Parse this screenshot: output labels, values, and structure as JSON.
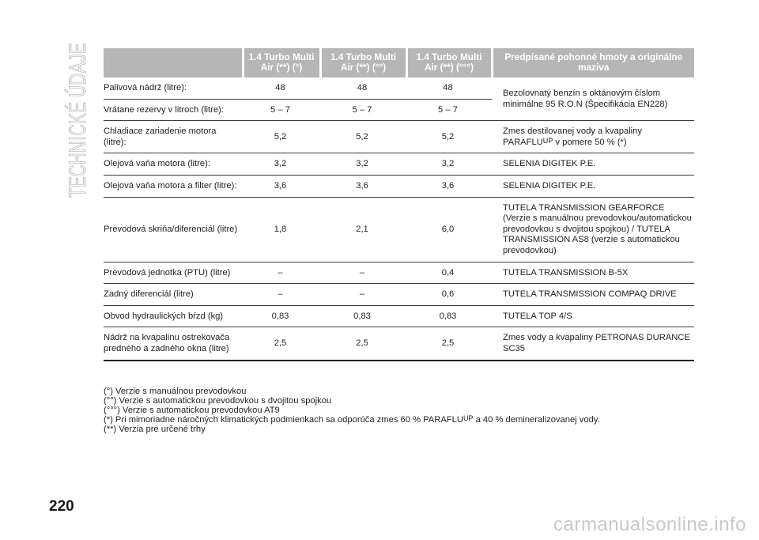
{
  "section_title": "TECHNICKÉ ÚDAJE",
  "page_number": "220",
  "watermark": "carmanualsonline.info",
  "table": {
    "headers": {
      "col1": "1.4 Turbo Multi Air (**) (°)",
      "col2": "1.4 Turbo Multi Air (**) (°°)",
      "col3": "1.4 Turbo Multi Air (**) (°°°)",
      "col4": "Predpísané pohonné hmoty a originálne maziva"
    },
    "rows": [
      {
        "label": "Palivová nádrž (litre):",
        "v1": "48",
        "v2": "48",
        "v3": "48"
      },
      {
        "label": "Vrátane rezervy v litroch (litre):",
        "v1": "5 – 7",
        "v2": "5 – 7",
        "v3": "5 – 7"
      },
      {
        "label": "Chladiace zariadenie motora (litre):",
        "v1": "5,2",
        "v2": "5,2",
        "v3": "5,2",
        "spec_a": "Zmes destilovanej vody a kvapaliny PARAFLU",
        "spec_sup": "UP",
        "spec_b": " v pomere 50 % (*)"
      },
      {
        "label": "Olejová vaňa motora (litre):",
        "v1": "3,2",
        "v2": "3,2",
        "v3": "3,2",
        "spec": "SELENIA DIGITEK P.E."
      },
      {
        "label": "Olejová vaňa motora a filter (litre):",
        "v1": "3,6",
        "v2": "3,6",
        "v3": "3,6",
        "spec": "SELENIA DIGITEK P.E."
      },
      {
        "label": "Prevodová skriňa/diferenciál (litre)",
        "v1": "1,8",
        "v2": "2,1",
        "v3": "6,0",
        "spec": "TUTELA TRANSMISSION GEARFORCE (Verzie s manuálnou prevodovkou/automatickou prevodovkou s dvojitou spojkou) / TUTELA TRANSMISSION AS8 (verzie s automatickou prevodovkou)"
      },
      {
        "label": "Prevodová jednotka (PTU) (litre)",
        "v1": "–",
        "v2": "–",
        "v3": "0,4",
        "spec": "TUTELA TRANSMISSION B-5X"
      },
      {
        "label": "Zadný diferenciál (litre)",
        "v1": "–",
        "v2": "–",
        "v3": "0,6",
        "spec": "TUTELA TRANSMISSION COMPAQ DRIVE"
      },
      {
        "label": "Obvod hydraulických bŕzd (kg)",
        "v1": "0,83",
        "v2": "0,83",
        "v3": "0,83",
        "spec": "TUTELA TOP 4/S"
      },
      {
        "label": "Nádrž na kvapalinu ostrekovača predného a zadného okna (litre)",
        "v1": "2,5",
        "v2": "2,5",
        "v3": "2,5",
        "spec": "Zmes vody a kvapaliny PETRONAS DURANCE SC35"
      }
    ],
    "fuel_spec": "Bezolovnatý benzín s oktánovým číslom minimálne 95 R.O.N (Špecifikácia EN228)"
  },
  "notes": {
    "n1": "(°) Verzie s manuálnou prevodovkou",
    "n2": "(°°) Verzie s automatickou prevodovkou s dvojitou spojkou",
    "n3": "(°°°) Verzie s automatickou prevodovkou AT9",
    "n4_a": "(*) Pri mimoriadne náročných klimatických podmienkach sa odporúča zmes 60 % PARAFLU",
    "n4_sup": "UP",
    "n4_b": "a 40 % demineralizovanej vody.",
    "n5": "(**) Verzia pre určené trhy"
  }
}
